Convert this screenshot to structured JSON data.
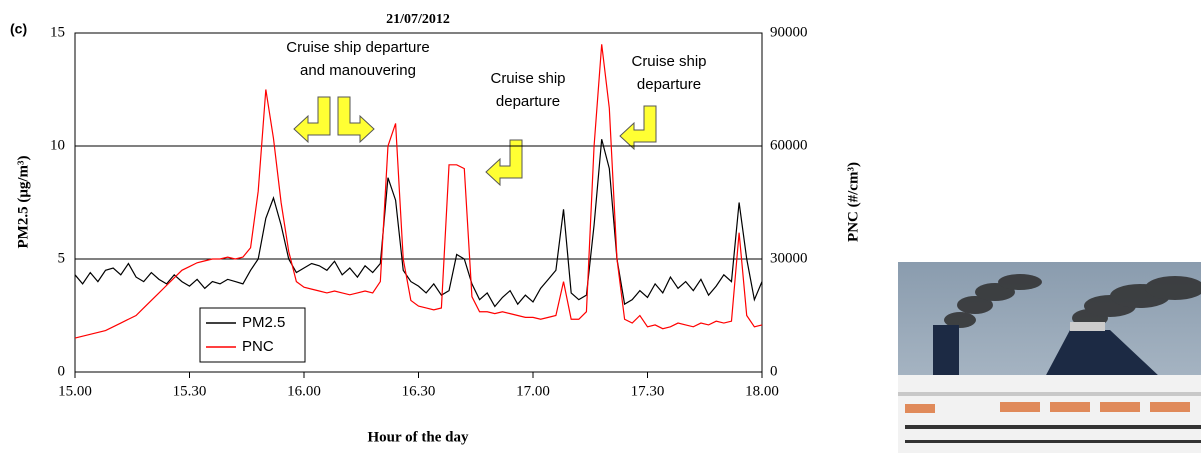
{
  "chart_data": {
    "type": "line",
    "panel_label": "(c)",
    "title": "21/07/2012",
    "xlabel": "Hour of the day",
    "ylabel": "PM2.5 (μg/m³)",
    "y2label": "PNC (#/cm³)",
    "x": [
      15,
      15.0333,
      15.0667,
      15.1,
      15.1333,
      15.1667,
      15.2,
      15.2333,
      15.2667,
      15.3,
      15.3333,
      15.3667,
      15.4,
      15.4333,
      15.4667,
      15.5,
      15.5333,
      15.5667,
      15.6,
      15.6333,
      15.6667,
      15.7,
      15.7333,
      15.7667,
      15.8,
      15.8333,
      15.8667,
      15.9,
      15.9333,
      15.9667,
      16,
      16.0333,
      16.0667,
      16.1,
      16.1333,
      16.1667,
      16.2,
      16.2333,
      16.2667,
      16.3,
      16.3333,
      16.3667,
      16.4,
      16.4333,
      16.4667,
      16.5,
      16.5333,
      16.5667,
      16.6,
      16.6333,
      16.6667,
      16.7,
      16.7333,
      16.7667,
      16.8,
      16.8333,
      16.8667,
      16.9,
      16.9333,
      16.9667,
      17,
      17.0333,
      17.0667,
      17.1,
      17.1333,
      17.1667,
      17.2,
      17.2333,
      17.2667,
      17.3,
      17.3333,
      17.3667,
      17.4,
      17.4333,
      17.4667,
      17.5,
      17.5333,
      17.5667,
      17.6,
      17.6333,
      17.6667,
      17.7,
      17.7333,
      17.7667,
      17.8,
      17.8333,
      17.8667,
      17.9,
      17.9333,
      17.9667,
      18
    ],
    "series": [
      {
        "name": "PM2.5",
        "color": "#000000",
        "axis": "y",
        "values": [
          4.3,
          3.9,
          4.4,
          4.0,
          4.5,
          4.6,
          4.3,
          4.8,
          4.2,
          4.0,
          4.4,
          4.1,
          3.9,
          4.3,
          4.0,
          3.8,
          4.1,
          3.7,
          4.0,
          3.9,
          4.1,
          4.0,
          3.9,
          4.5,
          5.0,
          6.8,
          7.7,
          6.5,
          5.0,
          4.4,
          4.6,
          4.8,
          4.7,
          4.5,
          4.9,
          4.3,
          4.6,
          4.2,
          4.7,
          4.4,
          4.8,
          8.6,
          7.6,
          4.5,
          4.0,
          3.8,
          3.5,
          3.9,
          3.4,
          3.6,
          5.2,
          5.0,
          3.9,
          3.2,
          3.5,
          2.9,
          3.3,
          3.6,
          3.0,
          3.4,
          3.1,
          3.7,
          4.1,
          4.5,
          7.2,
          3.5,
          3.2,
          3.4,
          6.5,
          10.3,
          9.0,
          5.0,
          3.0,
          3.2,
          3.6,
          3.3,
          3.9,
          3.5,
          4.2,
          3.7,
          4.0,
          3.6,
          4.1,
          3.4,
          3.8,
          4.3,
          4.0,
          7.5,
          5.0,
          3.2,
          4.0
        ]
      },
      {
        "name": "PNC",
        "color": "#ff0000",
        "axis": "y2",
        "values": [
          9000,
          9500,
          10000,
          10500,
          11000,
          12000,
          13000,
          14000,
          15000,
          17000,
          19000,
          21000,
          23000,
          25000,
          27000,
          28000,
          29000,
          29500,
          30000,
          30000,
          30500,
          30000,
          30500,
          33000,
          48000,
          75000,
          62000,
          45000,
          32000,
          24000,
          22500,
          22000,
          21500,
          21000,
          21500,
          21000,
          20500,
          21000,
          21500,
          21000,
          24000,
          60000,
          66000,
          30000,
          19000,
          17500,
          17000,
          16500,
          17000,
          55000,
          55000,
          54000,
          20000,
          16000,
          16000,
          15500,
          16000,
          15500,
          15000,
          14500,
          14500,
          14000,
          14500,
          15000,
          24000,
          14000,
          14000,
          16000,
          60000,
          87000,
          70000,
          30000,
          14000,
          13000,
          15000,
          12000,
          12500,
          11500,
          12000,
          13000,
          12500,
          12000,
          13000,
          12500,
          13500,
          13000,
          13500,
          37000,
          15000,
          12000,
          12500
        ]
      }
    ],
    "xlim": [
      15,
      18
    ],
    "xticks": [
      {
        "value": 15,
        "label": "15.00"
      },
      {
        "value": 15.5,
        "label": "15.30"
      },
      {
        "value": 16,
        "label": "16.00"
      },
      {
        "value": 16.5,
        "label": "16.30"
      },
      {
        "value": 17,
        "label": "17.00"
      },
      {
        "value": 17.5,
        "label": "17.30"
      },
      {
        "value": 18,
        "label": "18.00"
      }
    ],
    "ylim": [
      0,
      15
    ],
    "yticks": [
      0,
      5,
      10,
      15
    ],
    "y2lim": [
      0,
      90000
    ],
    "y2ticks": [
      0,
      30000,
      60000,
      90000
    ],
    "grid": true,
    "legend": "lower left",
    "annotations": [
      {
        "lines": [
          "Cruise ship departure",
          "and manouvering"
        ]
      },
      {
        "lines": [
          "Cruise ship",
          "departure"
        ]
      },
      {
        "lines": [
          "Cruise ship",
          "departure"
        ]
      }
    ]
  }
}
